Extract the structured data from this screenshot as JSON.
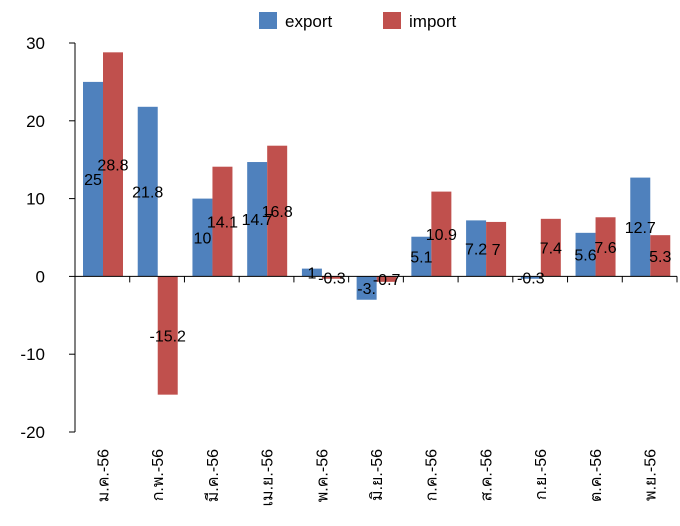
{
  "chart_data": {
    "type": "bar",
    "categories": [
      "ม.ค.-56",
      "ก.พ.-56",
      "มี.ค.-56",
      "เม.ย.-56",
      "พ.ค.-56",
      "มิ.ย.-56",
      "ก.ค.-56",
      "ส.ค.-56",
      "ก.ย.-56",
      "ต.ค.-56",
      "พ.ย.-56"
    ],
    "series": [
      {
        "name": "export",
        "color": "#4F81BD",
        "values": [
          25,
          21.8,
          10,
          14.7,
          1,
          -3,
          5.1,
          7.2,
          -0.3,
          5.6,
          12.7
        ],
        "labels": [
          "25",
          "21.8",
          "10",
          "14.7",
          "1",
          "-3.",
          "5.1",
          "7.2",
          "-0.3",
          "5.6",
          "12.7"
        ]
      },
      {
        "name": "import",
        "color": "#C0504D",
        "values": [
          28.8,
          -15.2,
          14.1,
          16.8,
          -0.3,
          -0.7,
          10.9,
          7,
          7.4,
          7.6,
          5.3
        ],
        "labels": [
          "28.8",
          "-15.2",
          "14.1",
          "16.8",
          "-0.3",
          "-0.7",
          "10.9",
          "7",
          "7.4",
          "7.6",
          "5.3"
        ]
      }
    ],
    "yticks": [
      "30",
      "20",
      "10",
      "0",
      "-10",
      "-20"
    ],
    "ylim": [
      -20,
      30
    ],
    "legend_position": "top-center",
    "grid": false,
    "title": "",
    "xlabel": "",
    "ylabel": ""
  }
}
